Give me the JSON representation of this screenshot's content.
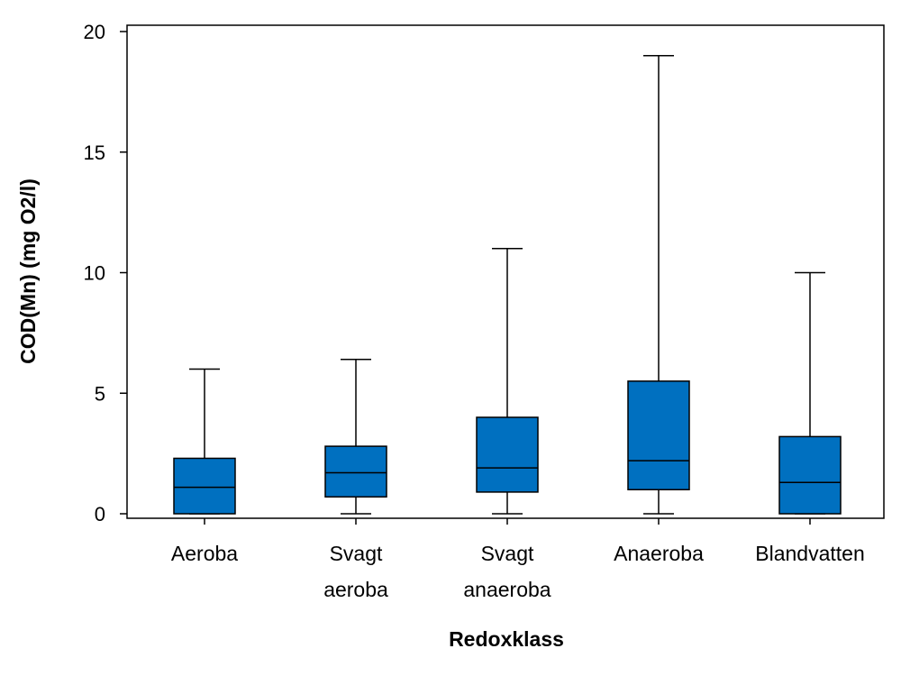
{
  "chart_data": {
    "type": "boxplot",
    "title": "",
    "xlabel": "Redoxklass",
    "ylabel": "COD(Mn) (mg O2/l)",
    "ylim": [
      0,
      20
    ],
    "yticks": [
      0,
      5,
      10,
      15,
      20
    ],
    "grid": false,
    "box_color": "#0070C0",
    "categories": [
      {
        "lines": [
          "Aeroba"
        ],
        "whisker_low": 0,
        "q1": 0,
        "median": 1.1,
        "q3": 2.3,
        "whisker_high": 6.0
      },
      {
        "lines": [
          "Svagt",
          "aeroba"
        ],
        "whisker_low": 0,
        "q1": 0.7,
        "median": 1.7,
        "q3": 2.8,
        "whisker_high": 6.4
      },
      {
        "lines": [
          "Svagt",
          "anaeroba"
        ],
        "whisker_low": 0,
        "q1": 0.9,
        "median": 1.9,
        "q3": 4.0,
        "whisker_high": 11.0
      },
      {
        "lines": [
          "Anaeroba"
        ],
        "whisker_low": 0,
        "q1": 1.0,
        "median": 2.2,
        "q3": 5.5,
        "whisker_high": 19.0
      },
      {
        "lines": [
          "Blandvatten"
        ],
        "whisker_low": 0,
        "q1": 0,
        "median": 1.3,
        "q3": 3.2,
        "whisker_high": 10.0
      }
    ]
  }
}
